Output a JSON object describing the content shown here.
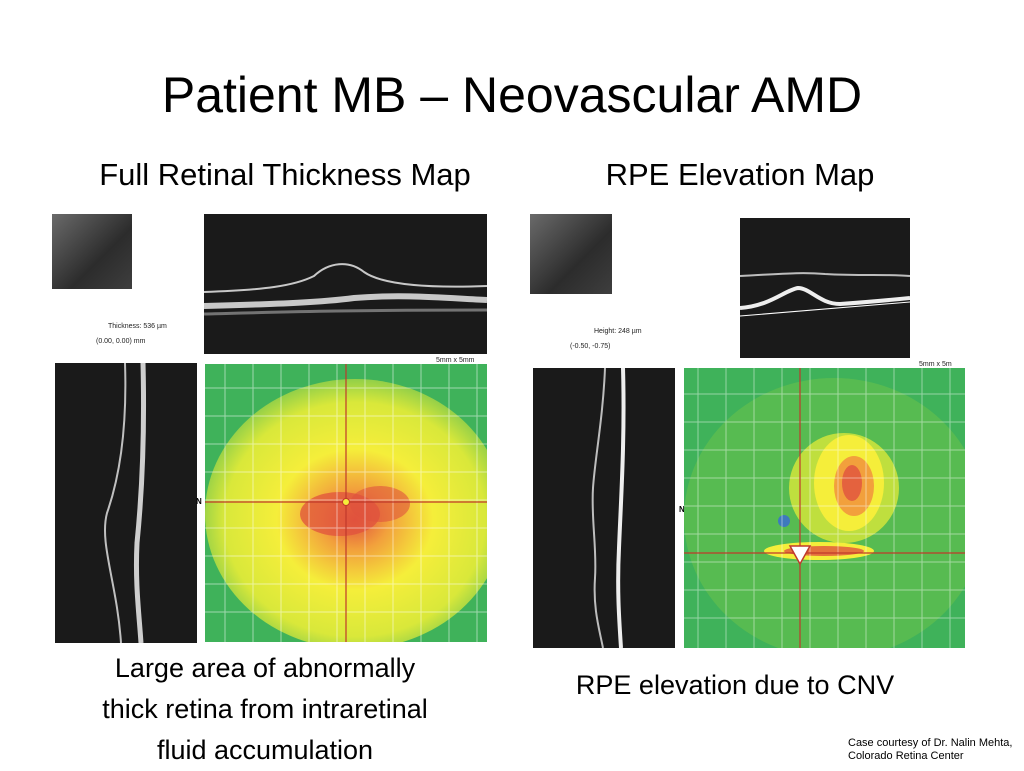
{
  "slide": {
    "title": "Patient MB – Neovascular AMD",
    "credit_line1": "Case courtesy of Dr. Nalin Mehta,",
    "credit_line2": "Colorado Retina Center"
  },
  "left_figure": {
    "heading": "Full Retinal Thickness Map",
    "readout_line1": "Thickness: 536 µm",
    "readout_line2": "(0.00, 0.00) mm",
    "scale_label": "5mm x 5mm",
    "orientation_label": "N",
    "caption_line1": "Large area of abnormally",
    "caption_line2": "thick retina from intraretinal",
    "caption_line3": "fluid accumulation"
  },
  "right_figure": {
    "heading": "RPE Elevation Map",
    "readout_line1": "Height: 248 µm",
    "readout_line2": "(-0.50, -0.75)",
    "scale_label": "5mm x 5m",
    "orientation_label": "N",
    "caption": "RPE elevation due to CNV"
  },
  "colors": {
    "map_green": "#3fb25a",
    "map_yellow": "#f5ee3a",
    "map_orange": "#f2a03c",
    "map_red": "#e0523e",
    "map_blue": "#3a6fd0",
    "crosshair": "#c0392b"
  }
}
